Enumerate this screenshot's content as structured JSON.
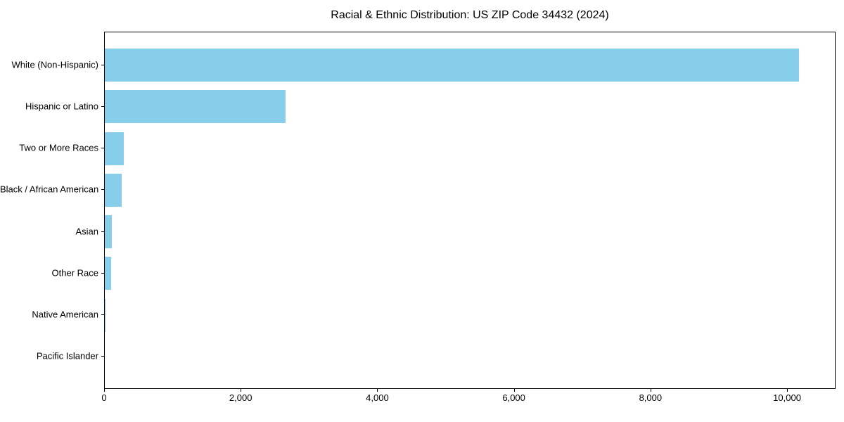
{
  "chart_data": {
    "type": "bar",
    "orientation": "horizontal",
    "title": "Racial & Ethnic Distribution: US ZIP Code 34432 (2024)",
    "categories": [
      "White (Non-Hispanic)",
      "Hispanic or Latino",
      "Two or More Races",
      "Black / African American",
      "Asian",
      "Other Race",
      "Native American",
      "Pacific Islander"
    ],
    "values": [
      10180,
      2650,
      275,
      250,
      105,
      95,
      15,
      0
    ],
    "xlabel": "",
    "ylabel": "",
    "xlim": [
      0,
      10710
    ],
    "x_ticks": [
      {
        "value": 0,
        "label": "0"
      },
      {
        "value": 2000,
        "label": "2,000"
      },
      {
        "value": 4000,
        "label": "4,000"
      },
      {
        "value": 6000,
        "label": "6,000"
      },
      {
        "value": 8000,
        "label": "8,000"
      },
      {
        "value": 10000,
        "label": "10,000"
      }
    ],
    "bar_color": "#87CEEB",
    "axis_color": "#000000",
    "background_color": "#ffffff",
    "grid": false,
    "legend": "none"
  }
}
